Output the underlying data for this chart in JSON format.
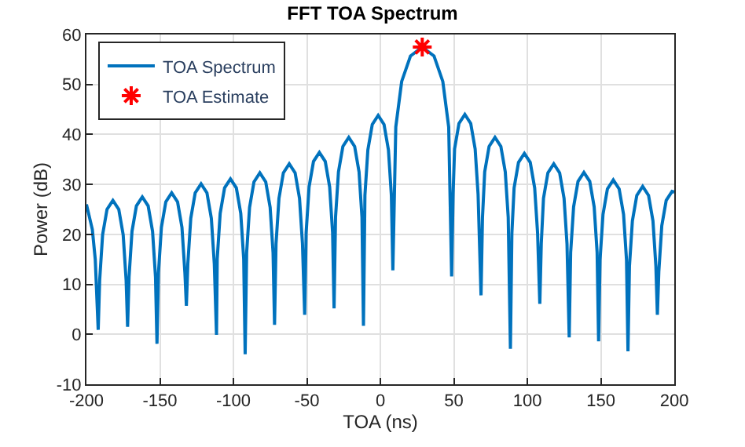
{
  "chart_data": {
    "type": "line",
    "title": "FFT TOA Spectrum",
    "xlabel": "TOA (ns)",
    "ylabel": "Power (dB)",
    "xlim": [
      -200,
      200
    ],
    "xticks": [
      -200,
      -150,
      -100,
      -50,
      0,
      50,
      100,
      150,
      200
    ],
    "ylim": [
      -10,
      60
    ],
    "yticks": [
      -10,
      0,
      10,
      20,
      30,
      40,
      50,
      60
    ],
    "grid": true,
    "legend": "top left",
    "series": [
      {
        "name": "TOA Spectrum",
        "color": "#0072bd",
        "marker": "none",
        "line_style": "solid",
        "x": [
          -200,
          -196,
          -194,
          -192,
          -191,
          -189,
          -186,
          -182,
          -178,
          -175,
          -173,
          -172,
          -171,
          -169,
          -166,
          -162,
          -158,
          -155,
          -153,
          -152,
          -151,
          -149,
          -146,
          -142,
          -138,
          -135,
          -133,
          -132,
          -131,
          -129,
          -126,
          -122,
          -118,
          -115,
          -113,
          -111.5,
          -111,
          -109,
          -106,
          -102,
          -98,
          -95,
          -93,
          -92,
          -91,
          -89,
          -86,
          -82,
          -78,
          -75,
          -73,
          -72,
          -71,
          -69,
          -66,
          -62,
          -58,
          -55,
          -53,
          -51.5,
          -50.5,
          -48.5,
          -45.5,
          -41.5,
          -37.5,
          -34.5,
          -32.5,
          -31.5,
          -30.5,
          -28.5,
          -25.5,
          -21.5,
          -17.5,
          -14.5,
          -12.5,
          -11.5,
          -10.5,
          -8.5,
          -5.5,
          -1.5,
          2.5,
          5.5,
          7.5,
          8.5,
          10.5,
          14.5,
          20.5,
          28.5,
          36.5,
          42.5,
          46.5,
          48.5,
          49.5,
          50.5,
          53.5,
          57.5,
          61.5,
          64.5,
          66.5,
          68.5,
          69.5,
          71,
          74,
          78,
          82,
          85,
          87,
          88.5,
          89.5,
          91,
          94,
          98,
          102,
          105,
          107,
          108.5,
          109.5,
          111,
          114,
          118,
          122,
          125,
          127,
          128.5,
          129.5,
          131.5,
          134.5,
          138.5,
          142.5,
          145.5,
          147.5,
          148.5,
          149.5,
          151.5,
          154.5,
          158.5,
          162.5,
          165.5,
          167.5,
          168.5,
          169.5,
          171.5,
          174.5,
          178.5,
          182.5,
          185.5,
          187.5,
          188.5,
          189.5,
          191.5,
          194.5,
          198.5,
          200
        ],
        "values": [
          26.0,
          21,
          15,
          0.9,
          10.8,
          19.9,
          25.0,
          26.8,
          25.0,
          19.9,
          10.8,
          1.5,
          11.5,
          20.6,
          25.7,
          27.5,
          25.7,
          20.6,
          11.5,
          -1.9,
          12.3,
          21.4,
          26.5,
          28.3,
          26.5,
          21.4,
          12.3,
          5.7,
          14.1,
          23.2,
          28.3,
          30.1,
          28.3,
          23.2,
          14.1,
          -0.1,
          15.1,
          24.2,
          29.3,
          31.1,
          29.3,
          24.2,
          15.1,
          -4.0,
          16.3,
          25.4,
          30.5,
          32.3,
          30.5,
          25.4,
          16.3,
          1.9,
          18.1,
          27.2,
          32.3,
          34.1,
          32.3,
          27.2,
          18.1,
          3.9,
          20.4,
          29.5,
          34.6,
          36.4,
          34.6,
          29.5,
          20.4,
          5.2,
          23.4,
          32.5,
          37.6,
          39.4,
          37.6,
          32.5,
          23.4,
          1.7,
          27.8,
          36.9,
          42.0,
          43.8,
          42.0,
          36.9,
          27.8,
          12.8,
          41.5,
          50.6,
          55.7,
          57.5,
          55.7,
          50.6,
          41.5,
          11.6,
          28.0,
          37.1,
          42.2,
          44.0,
          42.2,
          37.1,
          28.0,
          7.8,
          23.4,
          32.5,
          37.6,
          39.4,
          37.6,
          32.5,
          23.4,
          -2.9,
          20.2,
          29.3,
          34.4,
          36.2,
          34.4,
          29.3,
          20.2,
          6.1,
          18.1,
          27.2,
          32.3,
          34.1,
          32.3,
          27.2,
          18.1,
          -0.6,
          16.4,
          25.5,
          30.6,
          32.4,
          30.6,
          25.5,
          16.4,
          -1.4,
          14.9,
          24.0,
          29.1,
          30.9,
          29.1,
          24.0,
          14.9,
          -3.4,
          13.6,
          22.7,
          27.8,
          29.6,
          27.8,
          22.7,
          13.6,
          3.9,
          12.6,
          21.7,
          26.8,
          28.6,
          28.5
        ]
      },
      {
        "name": "TOA Estimate",
        "type": "scatter",
        "color": "#ff0000",
        "marker": "cross",
        "x": [
          28.5
        ],
        "values": [
          57.5
        ]
      }
    ]
  }
}
